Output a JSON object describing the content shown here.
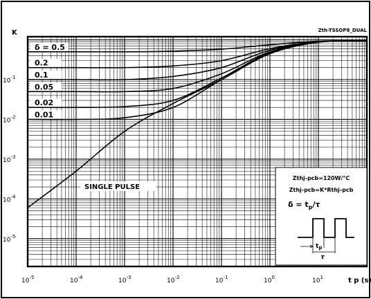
{
  "chart_data": {
    "type": "line",
    "title": "Zth-TSSOP8_DUAL",
    "ylabel": "K",
    "xlabel": "t p (s)",
    "x_scale": "log",
    "y_scale": "log",
    "xlim": [
      1e-05,
      100
    ],
    "ylim": [
      2e-06,
      1.2
    ],
    "grid": true,
    "x_ticks": [
      {
        "base": "10",
        "exp": "-5"
      },
      {
        "base": "10",
        "exp": "-4"
      },
      {
        "base": "10",
        "exp": "-3"
      },
      {
        "base": "10",
        "exp": "-2"
      },
      {
        "base": "10",
        "exp": "-1"
      },
      {
        "base": "10",
        "exp": "0"
      },
      {
        "base": "10",
        "exp": "1"
      }
    ],
    "y_ticks": [
      {
        "base": "10",
        "exp": "-1"
      },
      {
        "base": "10",
        "exp": "-2"
      },
      {
        "base": "10",
        "exp": "-3"
      },
      {
        "base": "10",
        "exp": "-4"
      },
      {
        "base": "10",
        "exp": "-5"
      }
    ],
    "series": [
      {
        "name": "δ = 0.5",
        "x": [
          1e-05,
          0.0001,
          0.001,
          0.01,
          0.1,
          1,
          10,
          100
        ],
        "y": [
          0.5,
          0.5,
          0.5,
          0.52,
          0.58,
          0.75,
          0.92,
          0.95
        ]
      },
      {
        "name": "0.2",
        "x": [
          1e-05,
          0.0001,
          0.001,
          0.01,
          0.1,
          1,
          10,
          100
        ],
        "y": [
          0.2,
          0.2,
          0.2,
          0.22,
          0.3,
          0.6,
          0.9,
          0.95
        ]
      },
      {
        "name": "0.1",
        "x": [
          1e-05,
          0.0001,
          0.001,
          0.01,
          0.1,
          1,
          10,
          100
        ],
        "y": [
          0.1,
          0.1,
          0.1,
          0.12,
          0.2,
          0.55,
          0.9,
          0.95
        ]
      },
      {
        "name": "0.05",
        "x": [
          1e-05,
          0.0001,
          0.001,
          0.01,
          0.1,
          1,
          10,
          100
        ],
        "y": [
          0.05,
          0.05,
          0.05,
          0.06,
          0.14,
          0.5,
          0.88,
          0.95
        ]
      },
      {
        "name": "0.02",
        "x": [
          1e-05,
          0.0001,
          0.001,
          0.01,
          0.1,
          1,
          10,
          100
        ],
        "y": [
          0.02,
          0.02,
          0.021,
          0.03,
          0.11,
          0.48,
          0.87,
          0.95
        ]
      },
      {
        "name": "0.01",
        "x": [
          1e-05,
          0.0001,
          0.001,
          0.01,
          0.1,
          1,
          10,
          100
        ],
        "y": [
          0.01,
          0.01,
          0.011,
          0.02,
          0.1,
          0.45,
          0.87,
          0.95
        ]
      },
      {
        "name": "SINGLE PULSE",
        "x": [
          1e-05,
          0.0001,
          0.001,
          0.01,
          0.1,
          1,
          10,
          100
        ],
        "y": [
          6e-05,
          0.0005,
          0.005,
          0.025,
          0.1,
          0.45,
          0.87,
          0.95
        ]
      }
    ],
    "annotations": {
      "single_pulse_label": "SINGLE PULSE",
      "inset_line1": "Zthj-pcb=120W/°C",
      "inset_line2": "Zthj-pcb=K*Rthj-pcb",
      "inset_delta_prefix": "δ = t",
      "inset_delta_sub": "p",
      "inset_delta_suffix": "/τ",
      "inset_tp_main": "t",
      "inset_tp_sub": "p",
      "inset_tau": "τ"
    }
  }
}
